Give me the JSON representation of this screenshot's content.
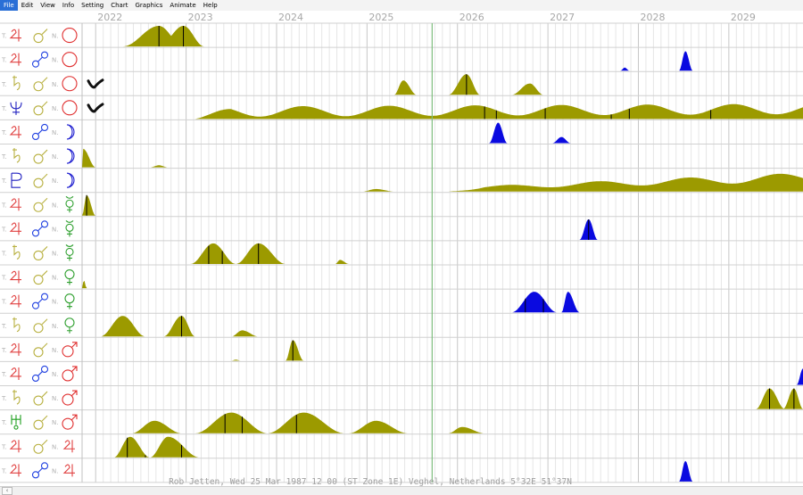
{
  "menu": [
    {
      "label": "File",
      "active": true
    },
    {
      "label": "Edit"
    },
    {
      "label": "View"
    },
    {
      "label": "Info"
    },
    {
      "label": "Setting"
    },
    {
      "label": "Chart"
    },
    {
      "label": "Graphics"
    },
    {
      "label": "Animate"
    },
    {
      "label": "Help"
    }
  ],
  "footer": "Rob Jetten, Wed 25 Mar 1987 12 00 (ST Zone 1E) Veghel, Netherlands   5°32E 51°37N",
  "colors": {
    "olive": "#9c9a00",
    "blue": "#0a0ae0",
    "grid": "#d0d0d0",
    "now_line": "#7fbf7f",
    "year_text": "#a8a8a8",
    "footer_text": "#a0a0a0"
  },
  "chart_data": {
    "type": "area",
    "x_unit": "year",
    "xlim": [
      2021.85,
      2029.82
    ],
    "years": [
      "2022",
      "2023",
      "2024",
      "2025",
      "2026",
      "2027",
      "2028",
      "2029"
    ],
    "now": 2025.72,
    "rows": [
      {
        "transit": "jupiter",
        "aspect": "conjunction",
        "natal": "sun",
        "color": "olive",
        "peaks": [
          [
            2022.3,
            2022.7,
            2022.97,
            1.0
          ],
          [
            2022.7,
            2022.97,
            2023.2,
            1.0
          ]
        ],
        "hits": [
          2022.3,
          2022.7,
          2022.97
        ]
      },
      {
        "transit": "jupiter",
        "aspect": "opposition",
        "natal": "sun",
        "color": "blue",
        "peaks": [
          [
            2027.8,
            2027.85,
            2027.9,
            0.15
          ],
          [
            2028.45,
            2028.52,
            2028.6,
            0.95
          ]
        ],
        "hits": []
      },
      {
        "transit": "saturn",
        "aspect": "conjunction",
        "natal": "sun",
        "color": "olive",
        "tick": true,
        "peaks": [
          [
            2025.3,
            2025.4,
            2025.55,
            0.7
          ],
          [
            2025.9,
            2026.1,
            2026.25,
            1.0
          ],
          [
            2026.6,
            2026.8,
            2026.95,
            0.55
          ]
        ],
        "hits": [
          2026.1
        ]
      },
      {
        "transit": "neptune",
        "aspect": "conjunction",
        "natal": "sun",
        "color": "olive",
        "tick": true,
        "wave": true,
        "hits": [
          2026.3,
          2026.43,
          2026.97,
          2027.7,
          2027.9,
          2028.8
        ]
      },
      {
        "transit": "jupiter",
        "aspect": "opposition",
        "natal": "moon",
        "color": "blue",
        "peaks": [
          [
            2026.35,
            2026.45,
            2026.55,
            1.0
          ],
          [
            2027.05,
            2027.15,
            2027.25,
            0.3
          ]
        ],
        "hits": []
      },
      {
        "transit": "saturn",
        "aspect": "conjunction",
        "natal": "moon",
        "color": "olive",
        "peaks": [
          [
            2021.85,
            2021.86,
            2022.0,
            0.9
          ],
          [
            2022.6,
            2022.7,
            2022.8,
            0.1
          ]
        ],
        "hits": []
      },
      {
        "transit": "pluto",
        "aspect": "conjunction",
        "natal": "moon",
        "color": "olive",
        "wave2": true,
        "hits": []
      },
      {
        "transit": "jupiter",
        "aspect": "conjunction",
        "natal": "mercury",
        "color": "olive",
        "peaks": [
          [
            2021.85,
            2021.9,
            2022.0,
            1.0
          ]
        ],
        "hits": [
          2021.9
        ]
      },
      {
        "transit": "jupiter",
        "aspect": "opposition",
        "natal": "mercury",
        "color": "blue",
        "peaks": [
          [
            2027.35,
            2027.45,
            2027.55,
            1.0
          ]
        ],
        "hits": [
          2027.45
        ]
      },
      {
        "transit": "saturn",
        "aspect": "conjunction",
        "natal": "mercury",
        "color": "olive",
        "peaks": [
          [
            2023.05,
            2023.3,
            2023.55,
            1.0
          ],
          [
            2023.55,
            2023.8,
            2024.1,
            1.0
          ],
          [
            2024.65,
            2024.7,
            2024.8,
            0.2
          ]
        ],
        "hits": [
          2023.25,
          2023.4,
          2023.8
        ]
      },
      {
        "transit": "jupiter",
        "aspect": "conjunction",
        "natal": "venus",
        "color": "olive",
        "peaks": [
          [
            2021.85,
            2021.87,
            2021.9,
            0.4
          ]
        ],
        "hits": []
      },
      {
        "transit": "jupiter",
        "aspect": "opposition",
        "natal": "venus",
        "color": "blue",
        "peaks": [
          [
            2026.6,
            2026.85,
            2027.1,
            1.0
          ],
          [
            2027.15,
            2027.22,
            2027.35,
            1.0
          ]
        ],
        "hits": [
          2026.75,
          2026.95
        ]
      },
      {
        "transit": "saturn",
        "aspect": "conjunction",
        "natal": "venus",
        "color": "olive",
        "peaks": [
          [
            2022.05,
            2022.3,
            2022.55,
            1.0
          ],
          [
            2022.75,
            2022.95,
            2023.1,
            1.0
          ],
          [
            2023.5,
            2023.62,
            2023.8,
            0.3
          ]
        ],
        "hits": [
          2022.95
        ]
      },
      {
        "transit": "jupiter",
        "aspect": "conjunction",
        "natal": "mars",
        "color": "olive",
        "peaks": [
          [
            2024.1,
            2024.18,
            2024.3,
            1.0
          ],
          [
            2023.5,
            2023.55,
            2023.6,
            0.05
          ]
        ],
        "hits": [
          2024.18
        ]
      },
      {
        "transit": "jupiter",
        "aspect": "opposition",
        "natal": "mars",
        "color": "blue",
        "peaks": [
          [
            2029.75,
            2029.82,
            2029.9,
            0.8
          ]
        ],
        "hits": []
      },
      {
        "transit": "saturn",
        "aspect": "conjunction",
        "natal": "mars",
        "color": "olive",
        "peaks": [
          [
            2029.3,
            2029.45,
            2029.62,
            1.0
          ],
          [
            2029.6,
            2029.72,
            2029.82,
            1.0
          ]
        ],
        "hits": [
          2029.45,
          2029.72
        ]
      },
      {
        "transit": "uranus",
        "aspect": "conjunction",
        "natal": "mars",
        "color": "olive",
        "peaks": [
          [
            2022.4,
            2022.65,
            2022.95,
            0.6
          ],
          [
            2023.1,
            2023.5,
            2023.9,
            1.0
          ],
          [
            2023.9,
            2024.3,
            2024.75,
            1.0
          ],
          [
            2024.8,
            2025.1,
            2025.45,
            0.6
          ],
          [
            2025.9,
            2026.05,
            2026.3,
            0.3
          ]
        ],
        "hits": [
          2023.43,
          2023.62,
          2024.22
        ]
      },
      {
        "transit": "jupiter",
        "aspect": "conjunction",
        "natal": "jupiter",
        "color": "olive",
        "peaks": [
          [
            2022.2,
            2022.38,
            2022.6,
            1.0
          ],
          [
            2022.6,
            2022.8,
            2023.15,
            1.0
          ]
        ],
        "hits": [
          2022.35,
          2022.55,
          2022.95
        ]
      },
      {
        "transit": "jupiter",
        "aspect": "opposition",
        "natal": "jupiter",
        "color": "blue",
        "peaks": [
          [
            2028.45,
            2028.52,
            2028.6,
            1.0
          ]
        ],
        "hits": []
      }
    ]
  }
}
